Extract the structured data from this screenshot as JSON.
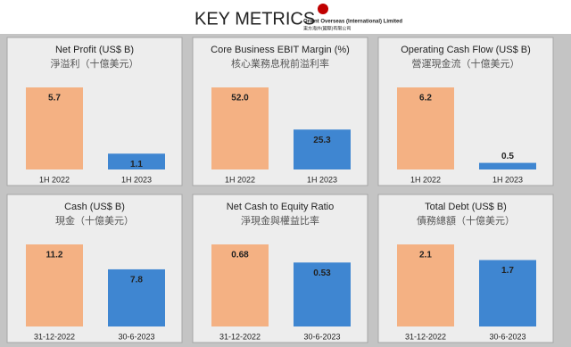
{
  "header": {
    "title": "KEY METRICS",
    "company": "Orient Overseas (International) Limited",
    "company_zh": "東方海外(國際)有限公司"
  },
  "chart_data": [
    {
      "type": "bar",
      "title": "Net Profit (US$ B)",
      "subtitle": "淨溢利（十億美元）",
      "categories": [
        "1H 2022",
        "1H 2023"
      ],
      "values": [
        5.7,
        1.1
      ],
      "colors": [
        "#f4b183",
        "#3f86d1"
      ]
    },
    {
      "type": "bar",
      "title": "Core Business EBIT Margin (%)",
      "subtitle": "核心業務息稅前溢利率",
      "categories": [
        "1H 2022",
        "1H 2023"
      ],
      "values": [
        52,
        25.3
      ],
      "value_labels": [
        "52.0",
        "25.3"
      ],
      "colors": [
        "#f4b183",
        "#3f86d1"
      ]
    },
    {
      "type": "bar",
      "title": "Operating Cash Flow (US$ B)",
      "subtitle": "營運現金流（十億美元）",
      "categories": [
        "1H 2022",
        "1H 2023"
      ],
      "values": [
        6.2,
        0.5
      ],
      "colors": [
        "#f4b183",
        "#3f86d1"
      ]
    },
    {
      "type": "bar",
      "title": "Cash (US$ B)",
      "subtitle": "現金（十億美元）",
      "categories": [
        "31-12-2022",
        "30-6-2023"
      ],
      "values": [
        11.2,
        7.8
      ],
      "colors": [
        "#f4b183",
        "#3f86d1"
      ]
    },
    {
      "type": "bar",
      "title": "Net Cash to Equity Ratio",
      "subtitle": "淨現金與權益比率",
      "categories": [
        "31-12-2022",
        "30-6-2023"
      ],
      "values": [
        0.68,
        0.53
      ],
      "colors": [
        "#f4b183",
        "#3f86d1"
      ]
    },
    {
      "type": "bar",
      "title": "Total Debt (US$ B)",
      "subtitle": "債務總額（十億美元）",
      "categories": [
        "31-12-2022",
        "30-6-2023"
      ],
      "values": [
        2.1,
        1.7
      ],
      "colors": [
        "#f4b183",
        "#3f86d1"
      ]
    }
  ]
}
